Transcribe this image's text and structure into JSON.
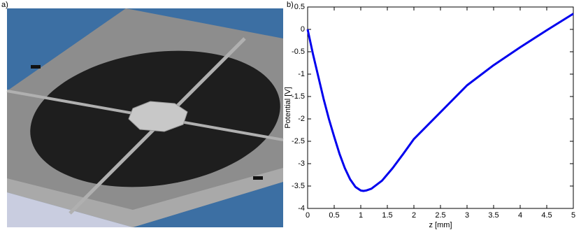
{
  "panel_labels": [
    "a)",
    "b)"
  ],
  "chart_data": {
    "type": "line",
    "x_label": "z [mm]",
    "y_label": "Potential [V]",
    "x": [
      0,
      0.1,
      0.2,
      0.3,
      0.4,
      0.5,
      0.6,
      0.7,
      0.8,
      0.9,
      1.0,
      1.05,
      1.1,
      1.2,
      1.4,
      1.6,
      1.8,
      2.0,
      2.5,
      3.0,
      3.5,
      4.0,
      4.5,
      5.0
    ],
    "series": [
      {
        "color": "#0000ee",
        "values": [
          0,
          -0.55,
          -1.05,
          -1.55,
          -2.0,
          -2.4,
          -2.78,
          -3.1,
          -3.35,
          -3.52,
          -3.6,
          -3.61,
          -3.6,
          -3.56,
          -3.38,
          -3.1,
          -2.78,
          -2.45,
          -1.85,
          -1.25,
          -0.8,
          -0.4,
          -0.02,
          0.35
        ]
      }
    ],
    "xlim": [
      0,
      5
    ],
    "ylim": [
      -4,
      0.5
    ],
    "xticks": [
      0,
      0.5,
      1,
      1.5,
      2,
      2.5,
      3,
      3.5,
      4,
      4.5,
      5
    ],
    "yticks": [
      0.5,
      0,
      -0.5,
      -1,
      -1.5,
      -2,
      -2.5,
      -3,
      -3.5,
      -4
    ],
    "grid": false
  }
}
